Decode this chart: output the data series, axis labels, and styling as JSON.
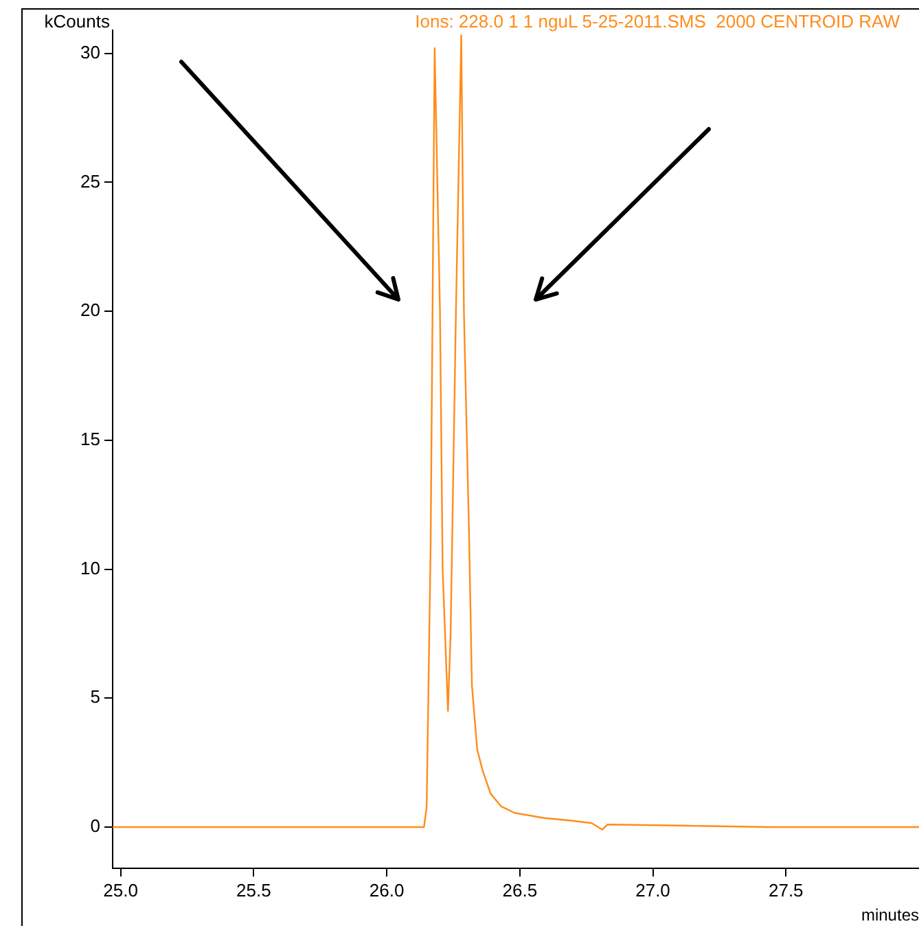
{
  "chart_data": {
    "type": "line",
    "title": "Ions: 228.0 1 1 nguL 5-25-2011.SMS  2000 CENTROID RAW",
    "xlabel": "minutes",
    "ylabel": "kCounts",
    "series": [
      {
        "color": "#ff8c1a",
        "x": [
          24.97,
          25.58,
          26.14,
          26.15,
          26.165,
          26.18,
          26.2,
          26.21,
          26.23,
          26.24,
          26.26,
          26.28,
          26.29,
          26.31,
          26.32,
          26.34,
          26.36,
          26.39,
          26.43,
          26.48,
          26.59,
          26.69,
          26.77,
          26.81,
          26.83,
          27.13,
          27.44,
          28.0
        ],
        "values": [
          0,
          0,
          0,
          0.8,
          11,
          30.2,
          20,
          10,
          4.5,
          7.5,
          20,
          30.7,
          20,
          11,
          5.5,
          3,
          2.2,
          1.3,
          0.8,
          0.55,
          0.35,
          0.25,
          0.15,
          -0.1,
          0.1,
          0.05,
          0,
          0
        ]
      }
    ],
    "xlim": [
      24.97,
      28.0
    ],
    "ylim": [
      -1.6,
      30.9
    ],
    "xticks": [
      {
        "value": 25,
        "label": "25.0"
      },
      {
        "value": 25.5,
        "label": "25.5"
      },
      {
        "value": 26,
        "label": "26.0"
      },
      {
        "value": 26.5,
        "label": "26.5"
      },
      {
        "value": 27,
        "label": "27.0"
      },
      {
        "value": 27.5,
        "label": "27.5"
      }
    ],
    "yticks": [
      0,
      5,
      10,
      15,
      20,
      25,
      30
    ],
    "grid": false,
    "legend": false,
    "marker": "none",
    "line_style": "solid"
  }
}
